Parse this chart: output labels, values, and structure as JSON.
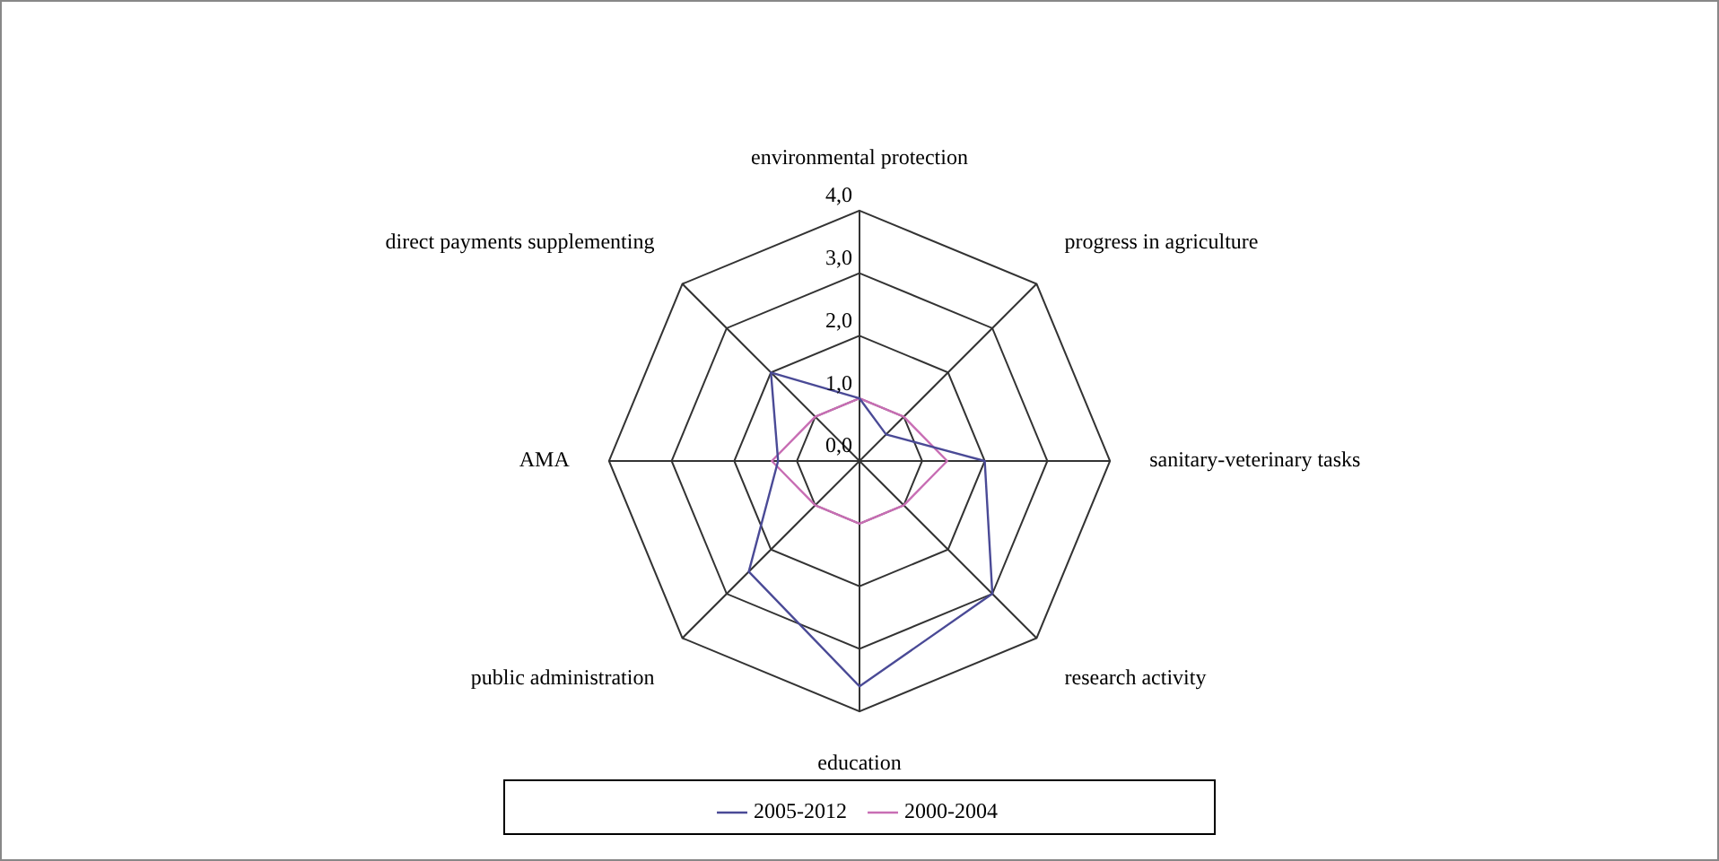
{
  "chart_data": {
    "type": "radar",
    "categories": [
      "environmental protection",
      "progress in agriculture",
      "sanitary-veterinary tasks",
      "research activity",
      "education",
      "public administration",
      "AMA",
      "direct payments supplementing"
    ],
    "series": [
      {
        "name": "2005-2012",
        "color": "#4a4a96",
        "values": [
          1.0,
          0.6,
          2.0,
          3.0,
          3.6,
          2.5,
          1.3,
          2.0
        ]
      },
      {
        "name": "2000-2004",
        "color": "#c86eb4",
        "values": [
          1.0,
          1.0,
          1.4,
          1.0,
          1.0,
          1.0,
          1.4,
          1.0
        ]
      }
    ],
    "ylim": [
      0,
      4
    ],
    "yticks": [
      {
        "value": 0,
        "label": "0,0"
      },
      {
        "value": 1,
        "label": "1,0"
      },
      {
        "value": 2,
        "label": "2,0"
      },
      {
        "value": 3,
        "label": "3,0"
      },
      {
        "value": 4,
        "label": "4,0"
      }
    ],
    "grid": true,
    "legend": "bottom",
    "marker": "none"
  }
}
